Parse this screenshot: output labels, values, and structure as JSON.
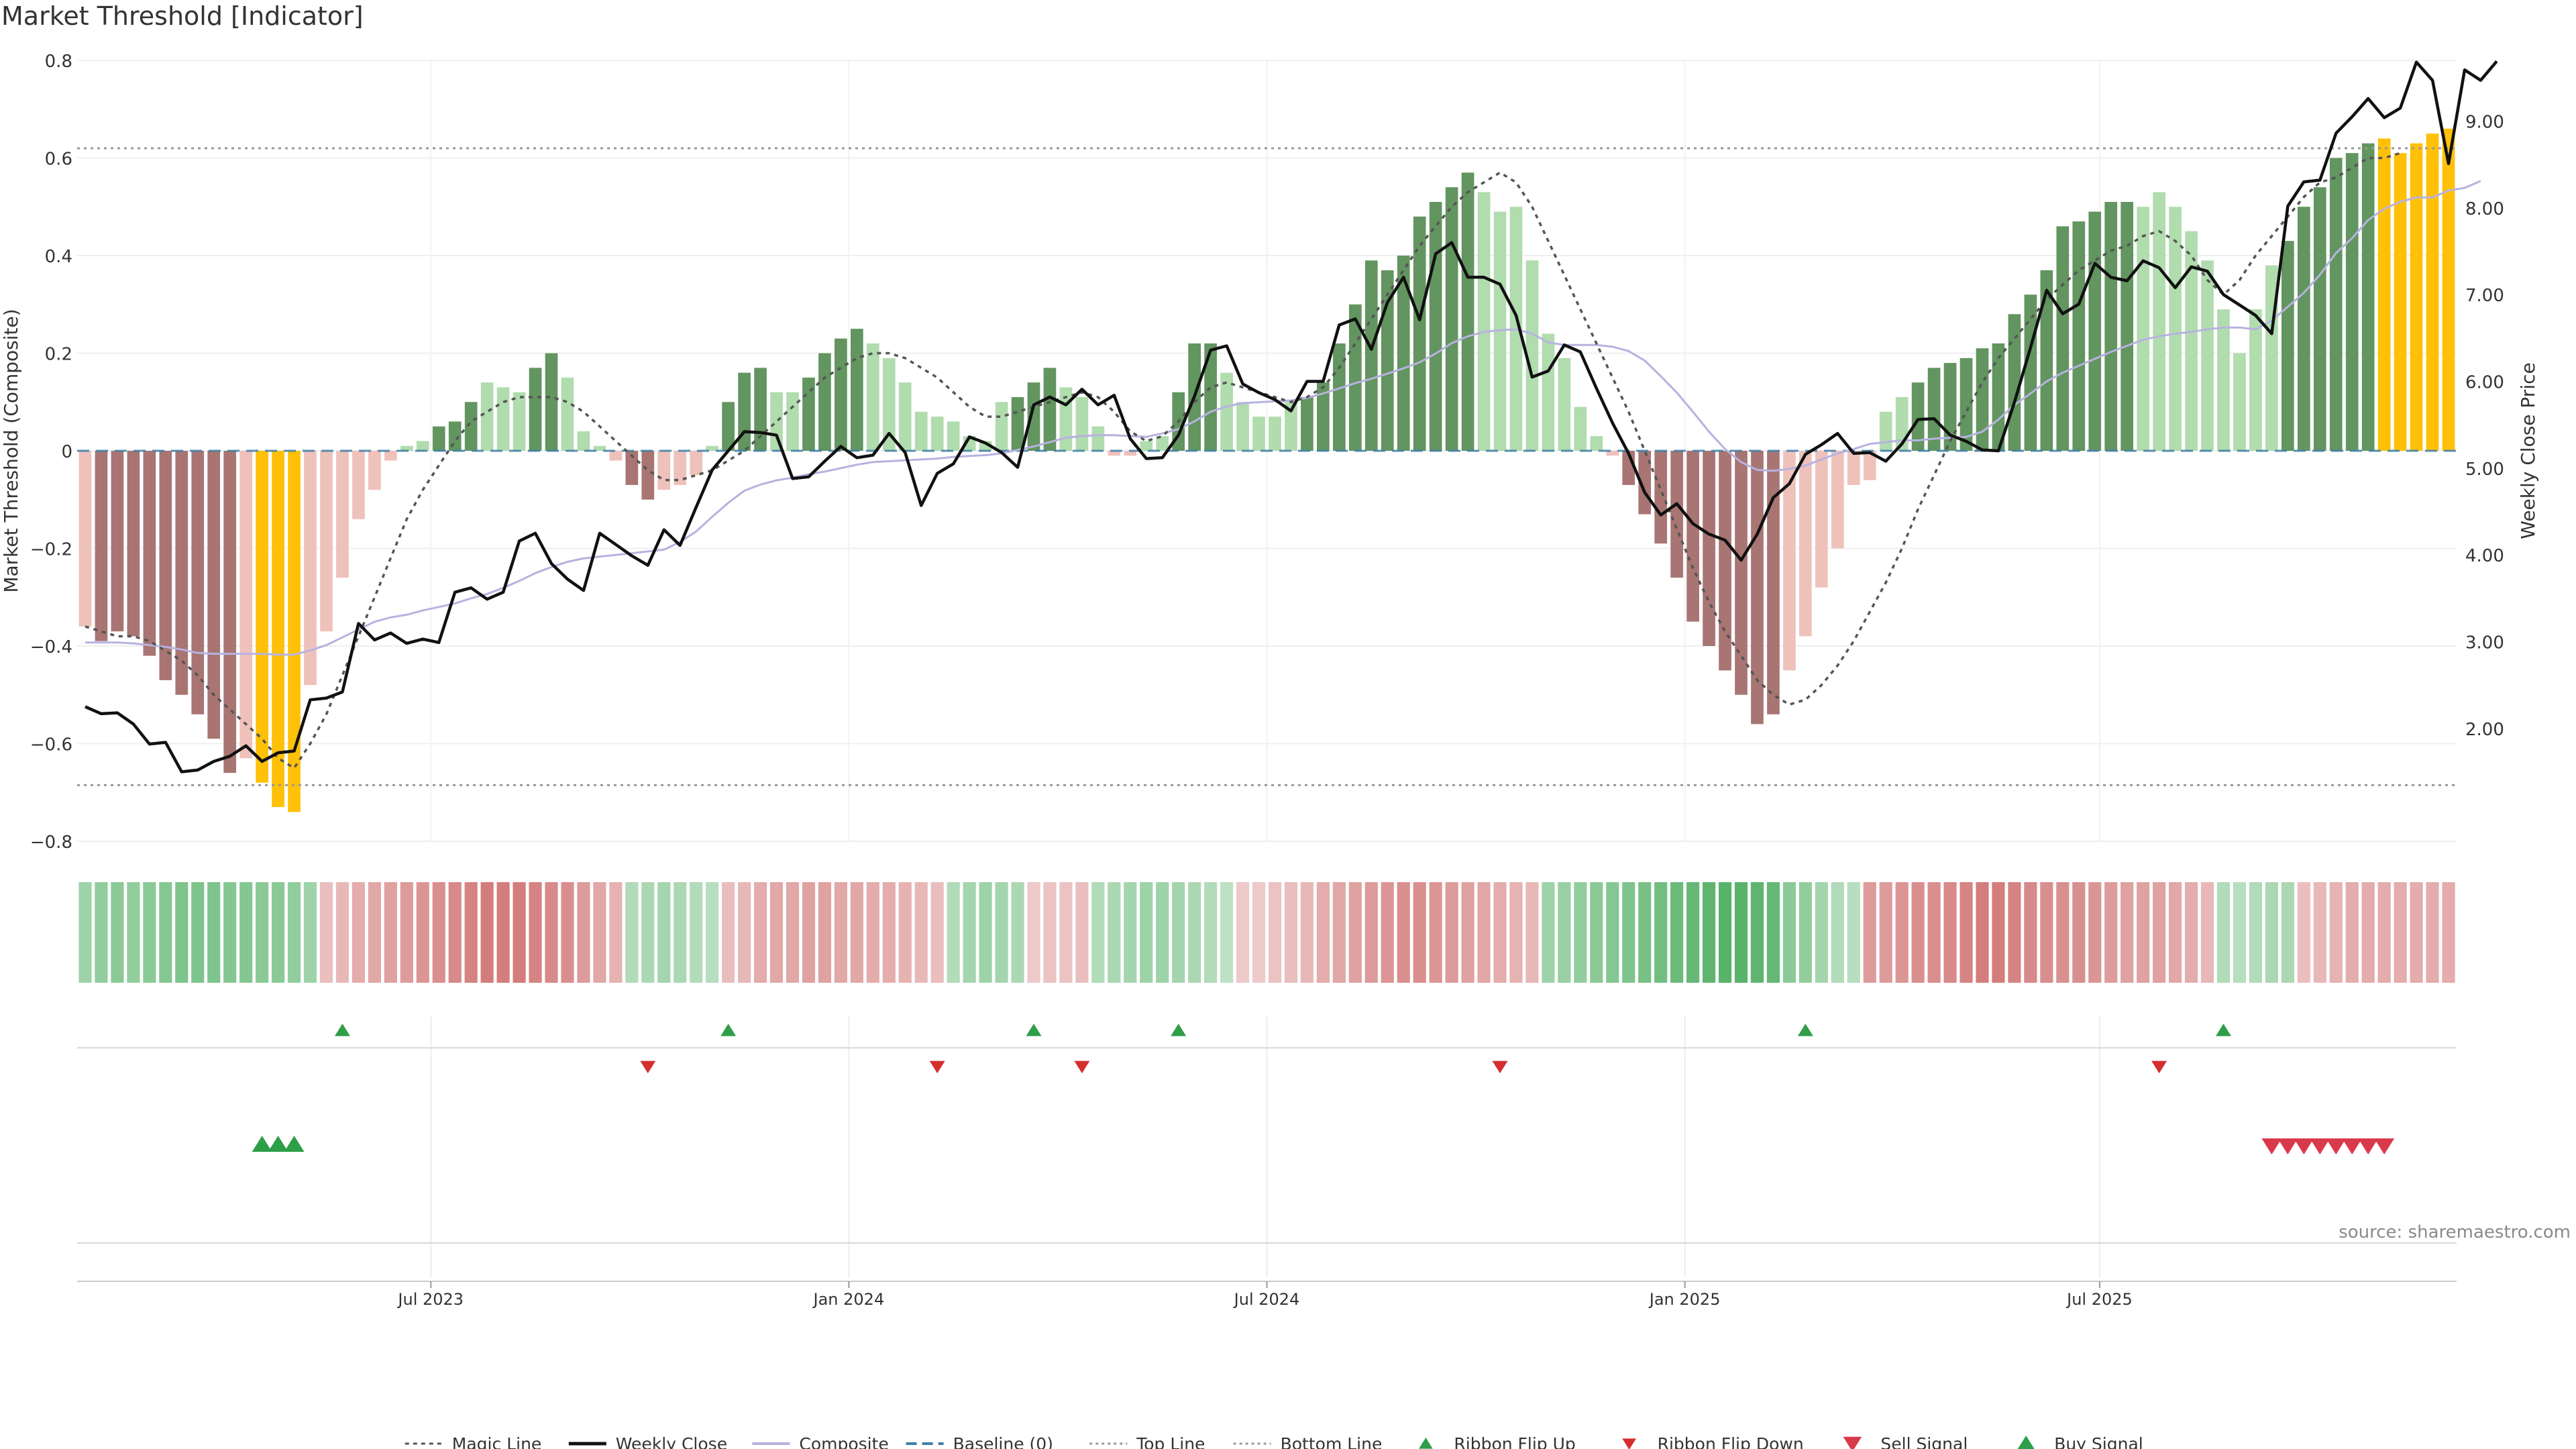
{
  "title": "Market Threshold [Indicator]",
  "source": "source: sharemaestro.com",
  "colors": {
    "neg_dark": "#a87573",
    "neg_light": "#efc1bb",
    "pos_dark": "#62955f",
    "pos_light": "#b1dcae",
    "threshold": "#ffc107",
    "magic": "#555555",
    "close": "#111111",
    "composite": "#b7b2e0",
    "baseline": "#3d7ea6",
    "ribbon_up": "#2e9e48",
    "ribbon_down": "#d32f2f",
    "sell": "#d93a4a",
    "buy": "#2e9e48"
  },
  "chart_data": {
    "type": "bar",
    "title": "Market Threshold [Indicator]",
    "ylabel": "Market Threshold (Composite)",
    "y2label": "Weekly Close Price",
    "ylim": [
      -0.8,
      0.8
    ],
    "yticks": [
      "0.8",
      "0.6",
      "0.4",
      "0.2",
      "0",
      "−0.2",
      "−0.4",
      "−0.6",
      "−0.8"
    ],
    "ytick_values": [
      0.8,
      0.6,
      0.4,
      0.2,
      0,
      -0.2,
      -0.4,
      -0.6,
      -0.8
    ],
    "y2lim": [
      0.7,
      9.7
    ],
    "y2ticks": [
      "9.00",
      "8.00",
      "7.00",
      "6.00",
      "5.00",
      "4.00",
      "3.00",
      "2.00"
    ],
    "y2tick_values": [
      9,
      8,
      7,
      6,
      5,
      4,
      3,
      2
    ],
    "xticks": [
      "Jul 2023",
      "Jan 2024",
      "Jul 2024",
      "Jan 2025",
      "Jul 2025"
    ],
    "xtick_weeks": [
      21.5,
      47.5,
      73.5,
      99.5,
      125.3
    ],
    "top_line": 0.62,
    "bottom_line": -0.685,
    "grid": true,
    "legend_position": "bottom",
    "composite": [
      -0.36,
      -0.39,
      -0.37,
      -0.38,
      -0.42,
      -0.47,
      -0.5,
      -0.54,
      -0.59,
      -0.66,
      -0.63,
      -0.68,
      -0.73,
      -0.74,
      -0.48,
      -0.37,
      -0.26,
      -0.14,
      -0.08,
      -0.02,
      0.01,
      0.02,
      0.05,
      0.06,
      0.1,
      0.14,
      0.13,
      0.12,
      0.17,
      0.2,
      0.15,
      0.04,
      0.01,
      -0.02,
      -0.07,
      -0.1,
      -0.08,
      -0.07,
      -0.05,
      0.01,
      0.1,
      0.16,
      0.17,
      0.12,
      0.12,
      0.15,
      0.2,
      0.23,
      0.25,
      0.22,
      0.19,
      0.14,
      0.08,
      0.07,
      0.06,
      0.03,
      0.02,
      0.1,
      0.11,
      0.14,
      0.17,
      0.13,
      0.11,
      0.05,
      -0.01,
      -0.01,
      0.02,
      0.03,
      0.12,
      0.22,
      0.22,
      0.16,
      0.1,
      0.07,
      0.07,
      0.1,
      0.11,
      0.14,
      0.22,
      0.3,
      0.39,
      0.37,
      0.4,
      0.48,
      0.51,
      0.54,
      0.57,
      0.53,
      0.49,
      0.5,
      0.39,
      0.24,
      0.19,
      0.09,
      0.03,
      -0.01,
      -0.07,
      -0.13,
      -0.19,
      -0.26,
      -0.35,
      -0.4,
      -0.45,
      -0.5,
      -0.56,
      -0.54,
      -0.45,
      -0.38,
      -0.28,
      -0.2,
      -0.07,
      -0.06,
      0.08,
      0.11,
      0.14,
      0.17,
      0.18,
      0.19,
      0.21,
      0.22,
      0.28,
      0.32,
      0.37,
      0.46,
      0.47,
      0.49,
      0.51,
      0.51,
      0.5,
      0.53,
      0.5,
      0.45,
      0.39,
      0.29,
      0.2,
      0.29,
      0.38,
      0.43,
      0.5,
      0.54,
      0.6,
      0.61,
      0.63,
      0.64,
      0.61,
      0.63,
      0.65,
      0.66
    ],
    "magic_line": [
      -0.36,
      -0.37,
      -0.38,
      -0.38,
      -0.39,
      -0.41,
      -0.43,
      -0.46,
      -0.5,
      -0.53,
      -0.56,
      -0.59,
      -0.63,
      -0.65,
      -0.6,
      -0.54,
      -0.46,
      -0.38,
      -0.3,
      -0.22,
      -0.14,
      -0.08,
      -0.03,
      0.02,
      0.06,
      0.08,
      0.1,
      0.11,
      0.11,
      0.11,
      0.1,
      0.08,
      0.05,
      0.02,
      -0.01,
      -0.04,
      -0.06,
      -0.06,
      -0.05,
      -0.04,
      -0.02,
      0.0,
      0.03,
      0.06,
      0.09,
      0.12,
      0.15,
      0.17,
      0.19,
      0.2,
      0.2,
      0.19,
      0.17,
      0.15,
      0.12,
      0.09,
      0.07,
      0.07,
      0.08,
      0.09,
      0.1,
      0.11,
      0.12,
      0.11,
      0.08,
      0.04,
      0.02,
      0.03,
      0.06,
      0.1,
      0.13,
      0.14,
      0.13,
      0.12,
      0.11,
      0.1,
      0.11,
      0.13,
      0.17,
      0.22,
      0.27,
      0.32,
      0.37,
      0.42,
      0.46,
      0.5,
      0.53,
      0.55,
      0.57,
      0.55,
      0.5,
      0.43,
      0.36,
      0.29,
      0.22,
      0.15,
      0.08,
      0.0,
      -0.08,
      -0.16,
      -0.24,
      -0.31,
      -0.37,
      -0.42,
      -0.47,
      -0.5,
      -0.52,
      -0.51,
      -0.48,
      -0.44,
      -0.39,
      -0.33,
      -0.27,
      -0.2,
      -0.12,
      -0.05,
      0.02,
      0.08,
      0.14,
      0.19,
      0.23,
      0.27,
      0.31,
      0.34,
      0.37,
      0.39,
      0.41,
      0.42,
      0.44,
      0.45,
      0.43,
      0.4,
      0.35,
      0.32,
      0.35,
      0.4,
      0.44,
      0.48,
      0.52,
      0.55,
      0.56,
      0.58,
      0.6,
      0.6,
      0.61
    ],
    "weekly_close": [
      2.25,
      2.17,
      2.18,
      2.05,
      1.82,
      1.84,
      1.5,
      1.52,
      1.62,
      1.68,
      1.8,
      1.62,
      1.72,
      1.74,
      2.33,
      2.35,
      2.42,
      3.21,
      3.02,
      3.1,
      2.98,
      3.03,
      2.99,
      3.57,
      3.62,
      3.49,
      3.57,
      4.16,
      4.25,
      3.9,
      3.72,
      3.59,
      4.25,
      4.12,
      3.99,
      3.88,
      4.29,
      4.11,
      4.55,
      4.98,
      5.2,
      5.42,
      5.41,
      5.38,
      4.88,
      4.9,
      5.08,
      5.25,
      5.12,
      5.15,
      5.4,
      5.18,
      4.57,
      4.94,
      5.05,
      5.36,
      5.29,
      5.18,
      5.01,
      5.73,
      5.82,
      5.73,
      5.91,
      5.73,
      5.84,
      5.34,
      5.11,
      5.12,
      5.38,
      5.83,
      6.36,
      6.41,
      5.97,
      5.87,
      5.79,
      5.66,
      6.0,
      6.0,
      6.65,
      6.72,
      6.37,
      6.91,
      7.2,
      6.71,
      7.47,
      7.6,
      7.2,
      7.2,
      7.12,
      6.76,
      6.05,
      6.12,
      6.42,
      6.34,
      5.92,
      5.52,
      5.17,
      4.72,
      4.46,
      4.59,
      4.36,
      4.24,
      4.17,
      3.94,
      4.24,
      4.66,
      4.82,
      5.16,
      5.27,
      5.4,
      5.17,
      5.18,
      5.08,
      5.28,
      5.56,
      5.57,
      5.38,
      5.31,
      5.21,
      5.2,
      5.76,
      6.39,
      7.05,
      6.78,
      6.89,
      7.36,
      7.2,
      7.16,
      7.39,
      7.31,
      7.08,
      7.32,
      7.27,
      7.0,
      6.88,
      6.76,
      6.55,
      8.02,
      8.3,
      8.32,
      8.86,
      9.05,
      9.26,
      9.04,
      9.15,
      9.68,
      9.47,
      8.51,
      9.59,
      9.47,
      9.69
    ],
    "composite_smooth": [
      2.99,
      2.99,
      2.99,
      2.98,
      2.96,
      2.94,
      2.91,
      2.87,
      2.86,
      2.86,
      2.86,
      2.86,
      2.85,
      2.85,
      2.9,
      2.96,
      3.05,
      3.14,
      3.23,
      3.28,
      3.31,
      3.36,
      3.4,
      3.44,
      3.5,
      3.55,
      3.62,
      3.7,
      3.79,
      3.86,
      3.92,
      3.96,
      3.98,
      4.0,
      4.02,
      4.04,
      4.06,
      4.15,
      4.27,
      4.44,
      4.6,
      4.74,
      4.81,
      4.86,
      4.89,
      4.93,
      4.96,
      5.0,
      5.04,
      5.07,
      5.08,
      5.09,
      5.1,
      5.11,
      5.13,
      5.14,
      5.15,
      5.17,
      5.21,
      5.25,
      5.3,
      5.35,
      5.37,
      5.38,
      5.38,
      5.37,
      5.36,
      5.4,
      5.45,
      5.54,
      5.65,
      5.71,
      5.75,
      5.76,
      5.77,
      5.78,
      5.81,
      5.86,
      5.92,
      5.98,
      6.03,
      6.09,
      6.15,
      6.22,
      6.32,
      6.44,
      6.52,
      6.57,
      6.59,
      6.6,
      6.55,
      6.45,
      6.42,
      6.42,
      6.42,
      6.4,
      6.35,
      6.24,
      6.06,
      5.87,
      5.65,
      5.42,
      5.22,
      5.07,
      4.98,
      4.97,
      4.99,
      5.03,
      5.1,
      5.17,
      5.22,
      5.28,
      5.3,
      5.32,
      5.32,
      5.34,
      5.35,
      5.36,
      5.42,
      5.56,
      5.73,
      5.86,
      6.0,
      6.1,
      6.18,
      6.26,
      6.34,
      6.41,
      6.48,
      6.52,
      6.55,
      6.57,
      6.6,
      6.62,
      6.62,
      6.6,
      6.7,
      6.86,
      7.02,
      7.23,
      7.48,
      7.65,
      7.86,
      7.99,
      8.07,
      8.12,
      8.12,
      8.2,
      8.23,
      8.31
    ],
    "bar_shades": [
      1,
      0,
      0,
      0,
      0,
      0,
      0,
      0,
      0,
      0,
      1,
      2,
      2,
      2,
      1,
      1,
      1,
      1,
      1,
      1,
      1,
      1,
      0,
      0,
      0,
      1,
      1,
      1,
      0,
      0,
      1,
      1,
      1,
      1,
      0,
      0,
      1,
      1,
      1,
      1,
      0,
      0,
      0,
      1,
      1,
      0,
      0,
      0,
      0,
      1,
      1,
      1,
      1,
      1,
      1,
      1,
      1,
      1,
      0,
      0,
      0,
      1,
      1,
      1,
      1,
      1,
      1,
      1,
      0,
      0,
      0,
      1,
      1,
      1,
      1,
      1,
      0,
      0,
      0,
      0,
      0,
      0,
      0,
      0,
      0,
      0,
      0,
      1,
      1,
      1,
      1,
      1,
      1,
      1,
      1,
      1,
      0,
      0,
      0,
      0,
      0,
      0,
      0,
      0,
      0,
      0,
      1,
      1,
      1,
      1,
      1,
      1,
      1,
      1,
      0,
      0,
      0,
      0,
      0,
      0,
      0,
      0,
      0,
      0,
      0,
      0,
      0,
      0,
      1,
      1,
      1,
      1,
      1,
      1,
      1,
      1,
      1,
      0,
      0,
      0,
      0,
      0,
      0,
      2,
      2,
      2,
      2,
      2,
      2,
      2,
      2,
      2
    ],
    "ribbon": [
      0.45,
      0.55,
      0.6,
      0.55,
      0.6,
      0.65,
      0.7,
      0.7,
      0.7,
      0.65,
      0.65,
      0.6,
      0.6,
      0.55,
      0.45,
      -0.3,
      -0.35,
      -0.45,
      -0.5,
      -0.55,
      -0.6,
      -0.65,
      -0.7,
      -0.75,
      -0.8,
      -0.85,
      -0.85,
      -0.85,
      -0.8,
      -0.75,
      -0.7,
      -0.6,
      -0.5,
      -0.4,
      0.3,
      0.35,
      0.4,
      0.35,
      0.3,
      0.25,
      -0.3,
      -0.35,
      -0.45,
      -0.5,
      -0.5,
      -0.55,
      -0.55,
      -0.5,
      -0.5,
      -0.45,
      -0.45,
      -0.4,
      -0.35,
      -0.3,
      0.3,
      0.4,
      0.45,
      0.4,
      0.35,
      -0.2,
      -0.25,
      -0.25,
      -0.3,
      0.3,
      0.35,
      0.4,
      0.45,
      0.45,
      0.4,
      0.35,
      0.3,
      0.2,
      -0.2,
      -0.2,
      -0.25,
      -0.3,
      -0.35,
      -0.45,
      -0.5,
      -0.55,
      -0.6,
      -0.65,
      -0.7,
      -0.7,
      -0.65,
      -0.6,
      -0.55,
      -0.5,
      -0.45,
      -0.4,
      -0.35,
      0.45,
      0.5,
      0.55,
      0.6,
      0.65,
      0.7,
      0.75,
      0.8,
      0.85,
      0.9,
      0.95,
      1,
      1,
      0.95,
      0.9,
      0.6,
      0.55,
      0.4,
      0.3,
      0.25,
      -0.6,
      -0.6,
      -0.65,
      -0.7,
      -0.7,
      -0.75,
      -0.8,
      -0.85,
      -0.85,
      -0.8,
      -0.75,
      -0.7,
      -0.7,
      -0.7,
      -0.65,
      -0.6,
      -0.55,
      -0.55,
      -0.55,
      -0.5,
      -0.45,
      -0.35,
      0.3,
      0.25,
      0.3,
      0.35,
      0.35,
      -0.3,
      -0.35,
      -0.4,
      -0.45,
      -0.45,
      -0.45,
      -0.45,
      -0.45,
      -0.45,
      -0.45
    ],
    "ribbon_flip_up_weeks": [
      16,
      40,
      59,
      68,
      107,
      133
    ],
    "ribbon_flip_down_weeks": [
      35,
      53,
      62,
      88,
      129
    ],
    "buy_signal_weeks": [
      11,
      12,
      13
    ],
    "sell_signal_weeks": [
      136,
      137,
      138,
      139,
      140,
      141,
      142,
      143
    ],
    "legend": [
      "Magic Line",
      "Weekly Close",
      "Composite",
      "Baseline (0)",
      "Top Line",
      "Bottom Line",
      "Ribbon Flip Up",
      "Ribbon Flip Down",
      "Sell Signal",
      "Buy Signal"
    ]
  }
}
